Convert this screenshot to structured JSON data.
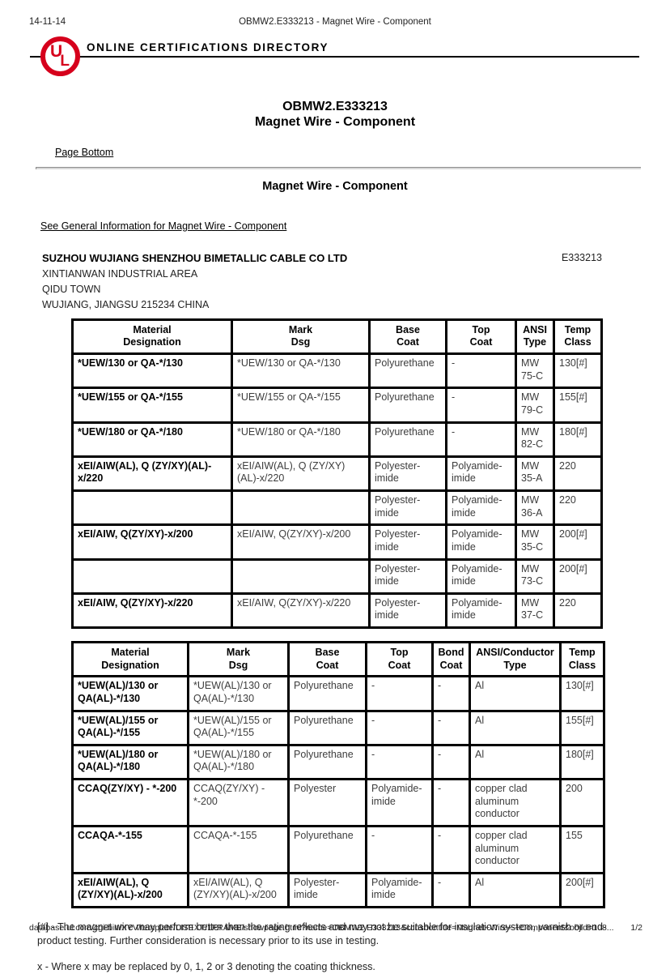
{
  "colors": {
    "ul_red": "#d6001c"
  },
  "meta": {
    "date": "14-11-14",
    "doc_title": "OBMW2.E333213 - Magnet Wire - Component"
  },
  "banner": {
    "logo": {
      "u": "U",
      "l": "L"
    },
    "directory_title": "ONLINE CERTIFICATIONS DIRECTORY"
  },
  "heading": {
    "line1": "OBMW2.E333213",
    "line2": "Magnet Wire - Component"
  },
  "nav": {
    "page_bottom_label": "Page Bottom"
  },
  "section": {
    "title": "Magnet Wire - Component",
    "general_info_link": "See General Information for Magnet Wire - Component"
  },
  "company": {
    "name": "SUZHOU WUJIANG SHENZHOU BIMETALLIC CABLE CO LTD",
    "file_number": "E333213",
    "address_lines": [
      "XINTIANWAN INDUSTRIAL AREA",
      "QIDU TOWN",
      "WUJIANG, JIANGSU 215234 CHINA"
    ]
  },
  "table1": {
    "headers": [
      "Material\nDesignation",
      "Mark\nDsg",
      "Base\nCoat",
      "Top\nCoat",
      "ANSI\nType",
      "Temp\nClass"
    ],
    "rows": [
      [
        "*UEW/130 or QA-*/130",
        "*UEW/130 or QA-*/130",
        "Polyurethane",
        "-",
        "MW 75-C",
        "130[#]"
      ],
      [
        "*UEW/155 or QA-*/155",
        "*UEW/155 or QA-*/155",
        "Polyurethane",
        "-",
        "MW 79-C",
        "155[#]"
      ],
      [
        "*UEW/180 or QA-*/180",
        "*UEW/180 or QA-*/180",
        "Polyurethane",
        "-",
        "MW 82-C",
        "180[#]"
      ],
      [
        "xEI/AIW(AL), Q (ZY/XY)(AL)-x/220",
        "xEI/AIW(AL), Q (ZY/XY)(AL)-x/220",
        "Polyester-imide",
        "Polyamide-imide",
        "MW 35-A",
        "220"
      ],
      [
        "",
        "",
        "Polyester-imide",
        "Polyamide-imide",
        "MW 36-A",
        "220"
      ],
      [
        "xEI/AIW, Q(ZY/XY)-x/200",
        "xEI/AIW, Q(ZY/XY)-x/200",
        "Polyester-imide",
        "Polyamide-imide",
        "MW 35-C",
        "200[#]"
      ],
      [
        "",
        "",
        "Polyester-imide",
        "Polyamide-imide",
        "MW 73-C",
        "200[#]"
      ],
      [
        "xEI/AIW, Q(ZY/XY)-x/220",
        "xEI/AIW, Q(ZY/XY)-x/220",
        "Polyester-imide",
        "Polyamide-imide",
        "MW 37-C",
        "220"
      ]
    ]
  },
  "table2": {
    "headers": [
      "Material\nDesignation",
      "Mark\nDsg",
      "Base\nCoat",
      "Top\nCoat",
      "Bond\nCoat",
      "ANSI/Conductor\nType",
      "Temp\nClass"
    ],
    "rows": [
      [
        "*UEW(AL)/130 or QA(AL)-*/130",
        "*UEW(AL)/130 or QA(AL)-*/130",
        "Polyurethane",
        "-",
        "-",
        "Al",
        "130[#]"
      ],
      [
        "*UEW(AL)/155 or QA(AL)-*/155",
        "*UEW(AL)/155 or QA(AL)-*/155",
        "Polyurethane",
        "-",
        "-",
        "Al",
        "155[#]"
      ],
      [
        "*UEW(AL)/180 or QA(AL)-*/180",
        "*UEW(AL)/180 or QA(AL)-*/180",
        "Polyurethane",
        "-",
        "-",
        "Al",
        "180[#]"
      ],
      [
        "CCAQ(ZY/XY) - *-200",
        "CCAQ(ZY/XY) - *-200",
        "Polyester",
        "Polyamide-imide",
        "-",
        "copper clad aluminum conductor",
        "200"
      ],
      [
        "CCAQA-*-155",
        "CCAQA-*-155",
        "Polyurethane",
        "-",
        "-",
        "copper clad aluminum conductor",
        "155"
      ],
      [
        "xEI/AIW(AL), Q (ZY/XY)(AL)-x/200",
        "xEI/AIW(AL), Q (ZY/XY)(AL)-x/200",
        "Polyester-imide",
        "Polyamide-imide",
        "-",
        "Al",
        "200[#]"
      ]
    ]
  },
  "footnotes": [
    "[#] - The magnet wire may perform better than the rating reflects and may not be suitable for insulation system, varnish or end-product testing. Further consideration is necessary prior to its use in testing.",
    "x - Where x may be replaced by 0, 1, 2 or 3 denoting the coating thickness."
  ],
  "footer": {
    "url": "database.ul.com/cgi-bin/XYV/template/LISEXT/1FRAME/showpage.html?name=OBMW2.E333213&ccnshorttitle=Magnet+Wire+-+Component&objid=108...",
    "page": "1/2"
  }
}
